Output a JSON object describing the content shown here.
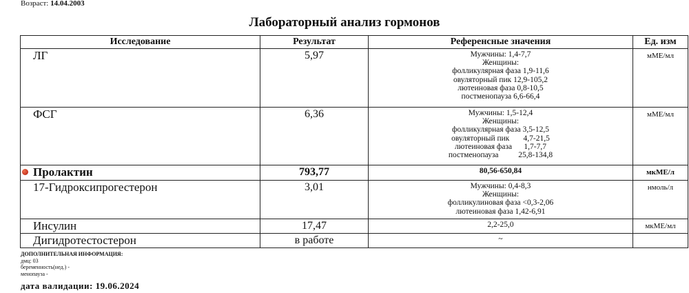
{
  "header": {
    "age_label": "Возраст:",
    "age_value": "14.04.2003",
    "title": "Лабораторный анализ гормонов"
  },
  "table": {
    "columns": [
      "Исследование",
      "Результат",
      "Референсные значения",
      "Ед. изм"
    ],
    "rows": [
      {
        "name": "ЛГ",
        "result": "5,97",
        "reference": "Мужчины: 1,4-7,7\nЖенщины:\nфолликулярная фаза 1,9-11,6\nовуляторный пик 12,9-105,2\nлютеиновая фаза 0,8-10,5\nпостменопауза 6,6-66,4",
        "unit": "мМЕ/мл"
      },
      {
        "name": "ФСГ",
        "result": "6,36",
        "reference": "Мужчины: 1,5-12,4\nЖенщины:\nфолликулярная фаза 3,5-12,5\nовуляторный пик       4,7-21,5\nлютеиновая фаза      1,7-7,7\nпостменопауза          25,8-134,8",
        "unit": "мМЕ/мл"
      },
      {
        "name": "Пролактин",
        "result": "793,77",
        "reference": "80,56-650,84",
        "unit": "мкМЕ/л",
        "flag_color": "#c8200e"
      },
      {
        "name": "17-Гидроксипрогестерон",
        "result": "3,01",
        "reference": "Мужчины: 0,4-8,3\nЖенщины:\nфолликулиновая фаза <0,3-2,06\nлютеиновая фаза 1,42-6,91",
        "unit": "нмоль/л"
      },
      {
        "name": "Инсулин",
        "result": "17,47",
        "reference": "2,2-25,0",
        "unit": "мкМЕ/мл"
      },
      {
        "name": "Дигидротестостерон",
        "result": "в работе",
        "reference": "~",
        "unit": ""
      }
    ]
  },
  "info": {
    "heading": "ДОПОЛНИТЕЛЬНАЯ ИНФОРМАЦИЯ:",
    "lines": [
      "дмц: 03",
      "беременность(нед.) -",
      "менопауза -"
    ]
  },
  "validation": "дата валидации:  19.06.2024"
}
